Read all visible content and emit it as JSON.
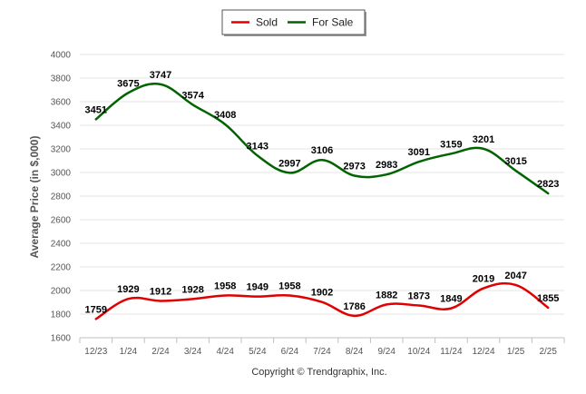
{
  "chart_data": {
    "type": "line",
    "ylabel": "Average Price (in $,000)",
    "credit": "Copyright © Trendgraphix, Inc.",
    "categories": [
      "12/23",
      "1/24",
      "2/24",
      "3/24",
      "4/24",
      "5/24",
      "6/24",
      "7/24",
      "8/24",
      "9/24",
      "10/24",
      "11/24",
      "12/24",
      "1/25",
      "2/25"
    ],
    "yticks": [
      1600,
      1800,
      2000,
      2200,
      2400,
      2600,
      2800,
      3000,
      3200,
      3400,
      3600,
      3800,
      4000
    ],
    "ylim": [
      1600,
      4000
    ],
    "grid": true,
    "legend_position": "top-center",
    "series": [
      {
        "name": "Sold",
        "color": "#e00000",
        "values": [
          1759,
          1929,
          1912,
          1928,
          1958,
          1949,
          1958,
          1902,
          1786,
          1882,
          1873,
          1849,
          2019,
          2047,
          1855
        ]
      },
      {
        "name": "For Sale",
        "color": "#006400",
        "values": [
          3451,
          3675,
          3747,
          3574,
          3408,
          3143,
          2997,
          3106,
          2973,
          2983,
          3091,
          3159,
          3201,
          3015,
          2823
        ]
      }
    ]
  }
}
